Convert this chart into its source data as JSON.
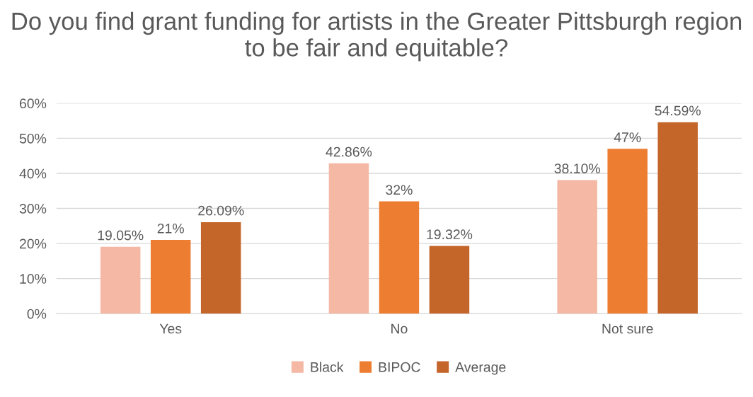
{
  "chart_data": {
    "type": "bar",
    "title": "Do you find grant funding for artists in the Greater Pittsburgh region to be fair and equitable?",
    "categories": [
      "Yes",
      "No",
      "Not sure"
    ],
    "series": [
      {
        "name": "Black",
        "color": "#f4b8a4",
        "values": [
          19.05,
          42.86,
          38.1
        ],
        "value_labels": [
          "19.05%",
          "42.86%",
          "38.10%"
        ]
      },
      {
        "name": "BIPOC",
        "color": "#ed7d31",
        "values": [
          21,
          32,
          47
        ],
        "value_labels": [
          "21%",
          "32%",
          "47%"
        ]
      },
      {
        "name": "Average",
        "color": "#c4652a",
        "values": [
          26.09,
          19.32,
          54.59
        ],
        "value_labels": [
          "26.09%",
          "19.32%",
          "54.59%"
        ]
      }
    ],
    "ylim": [
      0,
      60
    ],
    "yticks": [
      {
        "value": 0,
        "label": "0%"
      },
      {
        "value": 10,
        "label": "10%"
      },
      {
        "value": 20,
        "label": "20%"
      },
      {
        "value": 30,
        "label": "30%"
      },
      {
        "value": 40,
        "label": "40%"
      },
      {
        "value": 50,
        "label": "50%"
      },
      {
        "value": 60,
        "label": "60%"
      }
    ],
    "grid": "y",
    "legend": "bottom"
  }
}
